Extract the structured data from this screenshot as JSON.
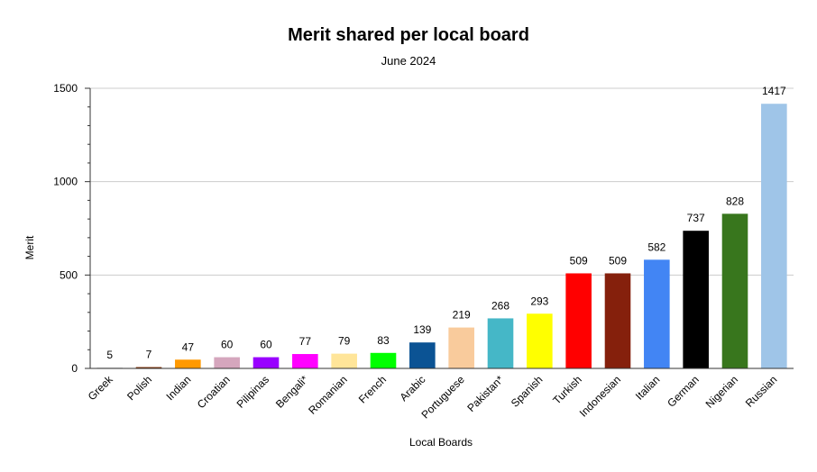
{
  "chart_data": {
    "type": "bar",
    "title": "Merit shared per local board",
    "subtitle": "June 2024",
    "xlabel": "Local Boards",
    "ylabel": "Merit",
    "ylim": [
      0,
      1500
    ],
    "yticks": [
      0,
      500,
      1000,
      1500
    ],
    "grid": true,
    "legend": "none",
    "categories": [
      "Greek",
      "Polish",
      "Indian",
      "Croatian",
      "Pilipinas",
      "Bengali*",
      "Romanian",
      "French",
      "Arabic",
      "Portuguese",
      "Pakistan*",
      "Spanish",
      "Turkish",
      "Indonesian",
      "Italian",
      "German",
      "Nigerian",
      "Russian"
    ],
    "values": [
      5,
      7,
      47,
      60,
      60,
      77,
      79,
      83,
      139,
      219,
      268,
      293,
      509,
      509,
      582,
      737,
      828,
      1417
    ],
    "colors": [
      "#d9d9d9",
      "#7f2c00",
      "#ff9900",
      "#d5a6bd",
      "#9900ff",
      "#ff00ff",
      "#ffe599",
      "#00ff00",
      "#0b5394",
      "#f9cb9c",
      "#45b7c7",
      "#ffff00",
      "#ff0000",
      "#85200c",
      "#4285f4",
      "#000000",
      "#38761d",
      "#9fc5e8"
    ]
  }
}
